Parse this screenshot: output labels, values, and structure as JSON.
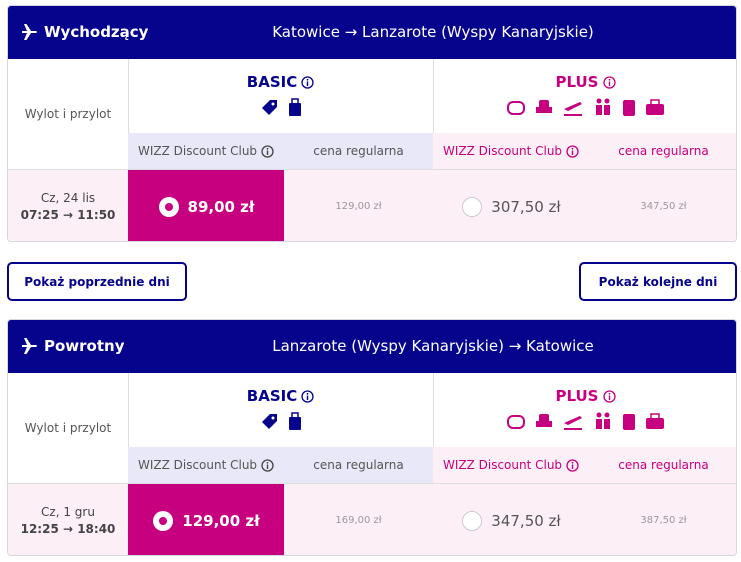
{
  "flights": [
    {
      "direction": "Wychodzący",
      "route": "Katowice → Lanzarote (Wyspy Kanaryjskie)",
      "row_header": "Wylot i przylot",
      "basic": {
        "name": "BASIC",
        "club_label": "WIZZ Discount Club",
        "regular_label": "cena regularna",
        "club_price": "89,00 zł",
        "regular_price": "129,00 zł"
      },
      "plus": {
        "name": "PLUS",
        "club_label": "WIZZ Discount Club",
        "regular_label": "cena regularna",
        "club_price": "307,50 zł",
        "regular_price": "347,50 zł"
      },
      "date": "Cz, 24 lis",
      "times": "07:25 → 11:50"
    },
    {
      "direction": "Powrotny",
      "route": "Lanzarote (Wyspy Kanaryjskie) → Katowice",
      "row_header": "Wylot i przylot",
      "basic": {
        "name": "BASIC",
        "club_label": "WIZZ Discount Club",
        "regular_label": "cena regularna",
        "club_price": "129,00 zł",
        "regular_price": "169,00 zł"
      },
      "plus": {
        "name": "PLUS",
        "club_label": "WIZZ Discount Club",
        "regular_label": "cena regularna",
        "club_price": "347,50 zł",
        "regular_price": "387,50 zł"
      },
      "date": "Cz, 1 gru",
      "times": "12:25 → 18:40"
    }
  ],
  "buttons": {
    "previous": "Pokaż poprzednie dni",
    "next": "Pokaż kolejne dni"
  }
}
